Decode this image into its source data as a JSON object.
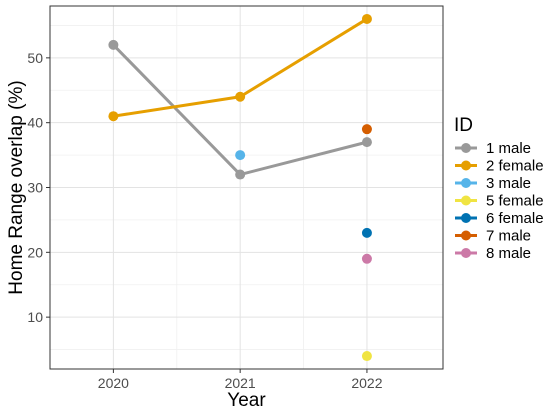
{
  "chart_data": {
    "type": "line",
    "xlabel": "Year",
    "ylabel": "Home Range overlap (%)",
    "x": [
      2020,
      2021,
      2022
    ],
    "xlim": [
      2019.5,
      2022.6
    ],
    "ylim": [
      2,
      58
    ],
    "y_ticks": [
      10,
      20,
      30,
      40,
      50
    ],
    "grid": true,
    "legend_title": "ID",
    "legend_position": "right",
    "series": [
      {
        "name": "1 male",
        "color": "#999999",
        "points": [
          {
            "x": 2020,
            "y": 52
          },
          {
            "x": 2021,
            "y": 32
          },
          {
            "x": 2022,
            "y": 37
          }
        ]
      },
      {
        "name": "2 female",
        "color": "#E69F00",
        "points": [
          {
            "x": 2020,
            "y": 41
          },
          {
            "x": 2021,
            "y": 44
          },
          {
            "x": 2022,
            "y": 56
          }
        ]
      },
      {
        "name": "3 male",
        "color": "#56B4E9",
        "points": [
          {
            "x": 2021,
            "y": 35
          }
        ]
      },
      {
        "name": "5 female",
        "color": "#F0E442",
        "points": [
          {
            "x": 2022,
            "y": 4
          }
        ]
      },
      {
        "name": "6 female",
        "color": "#0072B2",
        "points": [
          {
            "x": 2022,
            "y": 23
          }
        ]
      },
      {
        "name": "7 male",
        "color": "#D55E00",
        "points": [
          {
            "x": 2022,
            "y": 39
          }
        ]
      },
      {
        "name": "8 male",
        "color": "#CC79A7",
        "points": [
          {
            "x": 2022,
            "y": 19
          }
        ]
      }
    ]
  }
}
